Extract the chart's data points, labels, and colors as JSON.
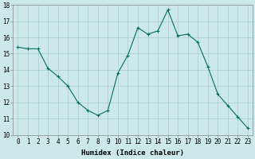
{
  "x": [
    0,
    1,
    2,
    3,
    4,
    5,
    6,
    7,
    8,
    9,
    10,
    11,
    12,
    13,
    14,
    15,
    16,
    17,
    18,
    19,
    20,
    21,
    22,
    23
  ],
  "y": [
    15.4,
    15.3,
    15.3,
    14.1,
    13.6,
    13.0,
    12.0,
    11.5,
    11.2,
    11.5,
    13.8,
    14.9,
    16.6,
    16.2,
    16.4,
    17.7,
    16.1,
    16.2,
    15.7,
    14.2,
    12.5,
    11.8,
    11.1,
    10.4
  ],
  "line_color": "#007060",
  "marker": "+",
  "marker_size": 3,
  "marker_linewidth": 0.8,
  "linewidth": 0.8,
  "bg_color": "#cce8e8",
  "grid_color": "#aacccc",
  "xlabel": "Humidex (Indice chaleur)",
  "ylim": [
    10,
    18
  ],
  "xlim_min": -0.5,
  "xlim_max": 23.5,
  "yticks": [
    10,
    11,
    12,
    13,
    14,
    15,
    16,
    17,
    18
  ],
  "xticks": [
    0,
    1,
    2,
    3,
    4,
    5,
    6,
    7,
    8,
    9,
    10,
    11,
    12,
    13,
    14,
    15,
    16,
    17,
    18,
    19,
    20,
    21,
    22,
    23
  ],
  "xlabel_fontsize": 6.5,
  "tick_fontsize": 5.5,
  "spine_color": "#888888"
}
